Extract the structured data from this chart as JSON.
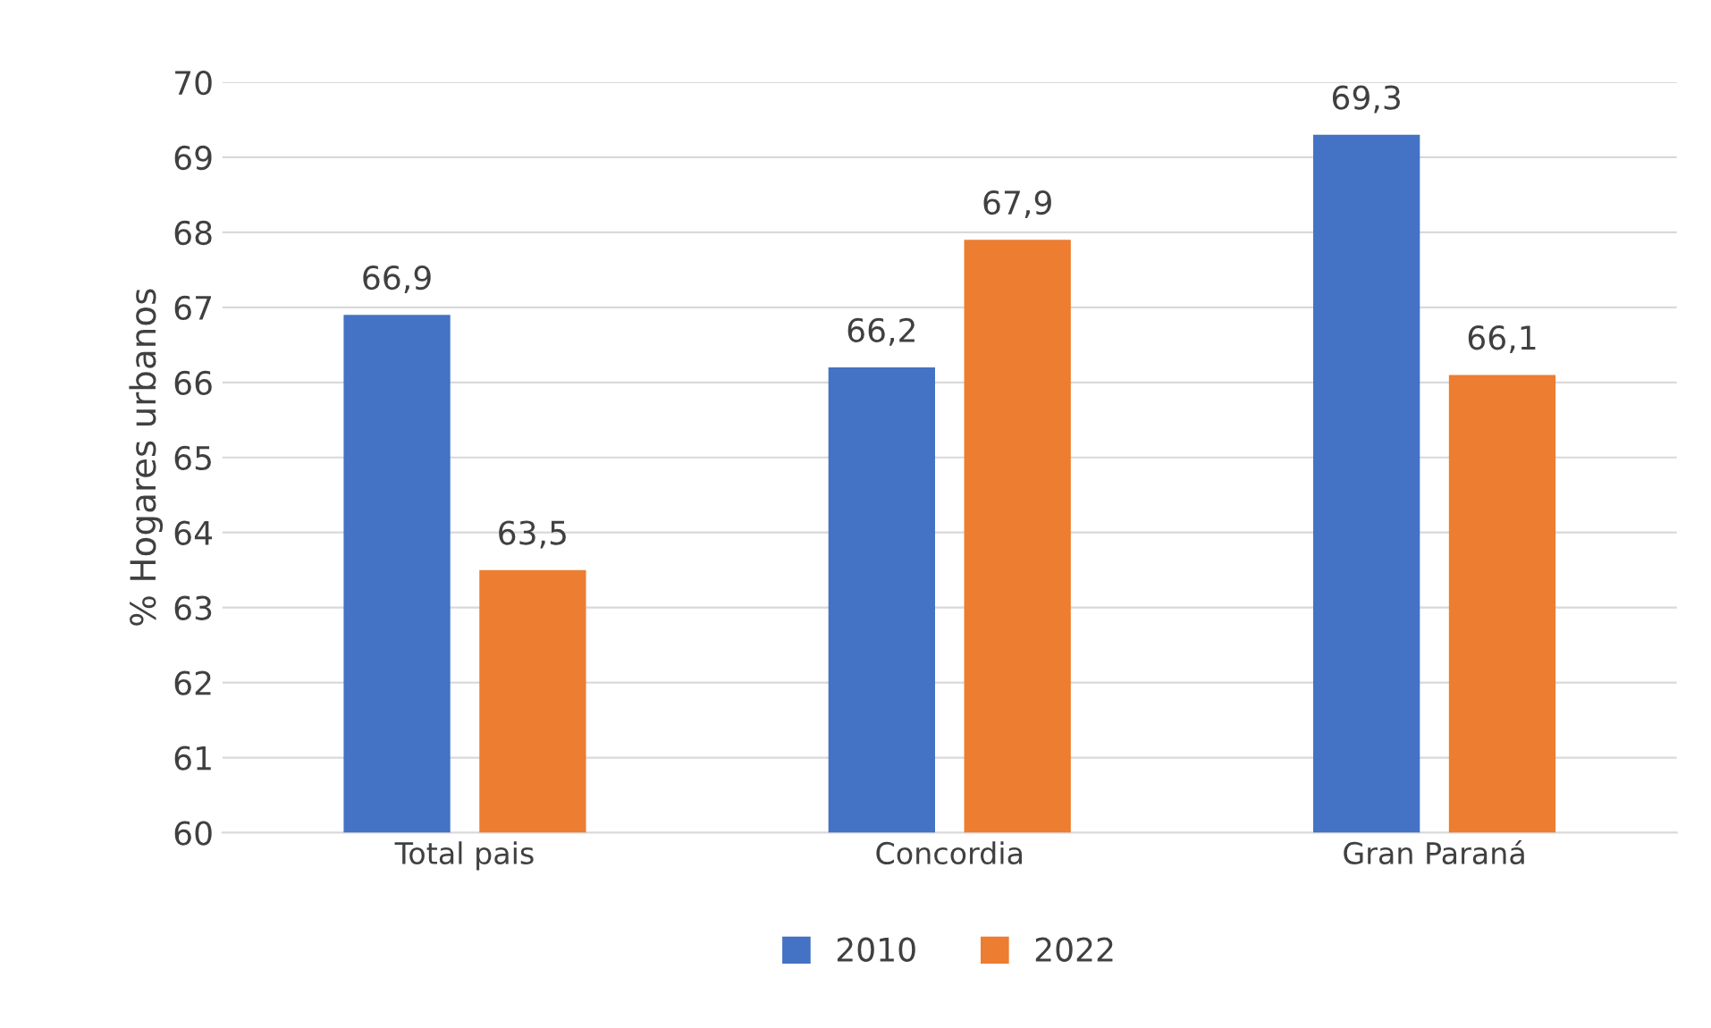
{
  "chart_data": {
    "type": "bar",
    "ylabel": "% Hogares urbanos",
    "categories": [
      "Total pais",
      "Concordia",
      "Gran Paraná"
    ],
    "series": [
      {
        "name": "2010",
        "color": "#4472c4",
        "values": [
          66.9,
          66.2,
          69.3
        ],
        "value_labels": [
          "66,9",
          "66,2",
          "69,3"
        ]
      },
      {
        "name": "2022",
        "color": "#ed7d31",
        "values": [
          63.5,
          67.9,
          66.1
        ],
        "value_labels": [
          "63,5",
          "67,9",
          "66,1"
        ]
      }
    ],
    "ylim": [
      60,
      70
    ],
    "yticks": [
      60,
      61,
      62,
      63,
      64,
      65,
      66,
      67,
      68,
      69,
      70
    ],
    "grid": "y",
    "legend": "bottom"
  }
}
